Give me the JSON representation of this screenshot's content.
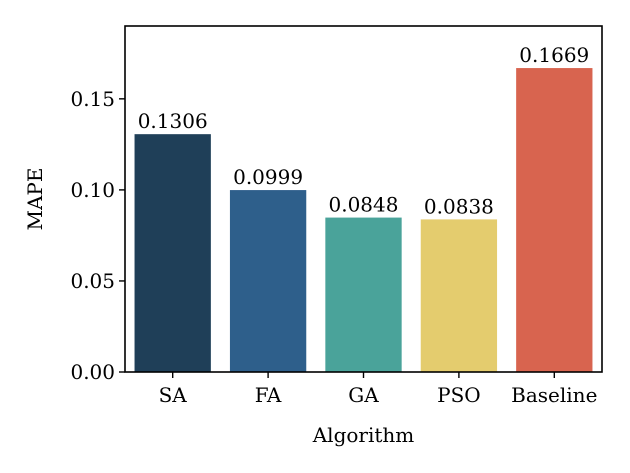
{
  "chart_data": {
    "type": "bar",
    "title": "",
    "xlabel": "Algorithm",
    "ylabel": "MAPE",
    "categories": [
      "SA",
      "FA",
      "GA",
      "PSO",
      "Baseline"
    ],
    "values": [
      0.1306,
      0.0999,
      0.0848,
      0.0838,
      0.1669
    ],
    "value_labels": [
      "0.1306",
      "0.0999",
      "0.0848",
      "0.0838",
      "0.1669"
    ],
    "colors": [
      "#1f3f58",
      "#2e5f8b",
      "#4aa39a",
      "#e4cc6e",
      "#d8644f"
    ],
    "ylim": [
      0,
      0.19
    ],
    "yticks": [
      0.0,
      0.05,
      0.1,
      0.15
    ],
    "ytick_labels": [
      "0.00",
      "0.05",
      "0.10",
      "0.15"
    ],
    "grid": false,
    "legend": false
  }
}
